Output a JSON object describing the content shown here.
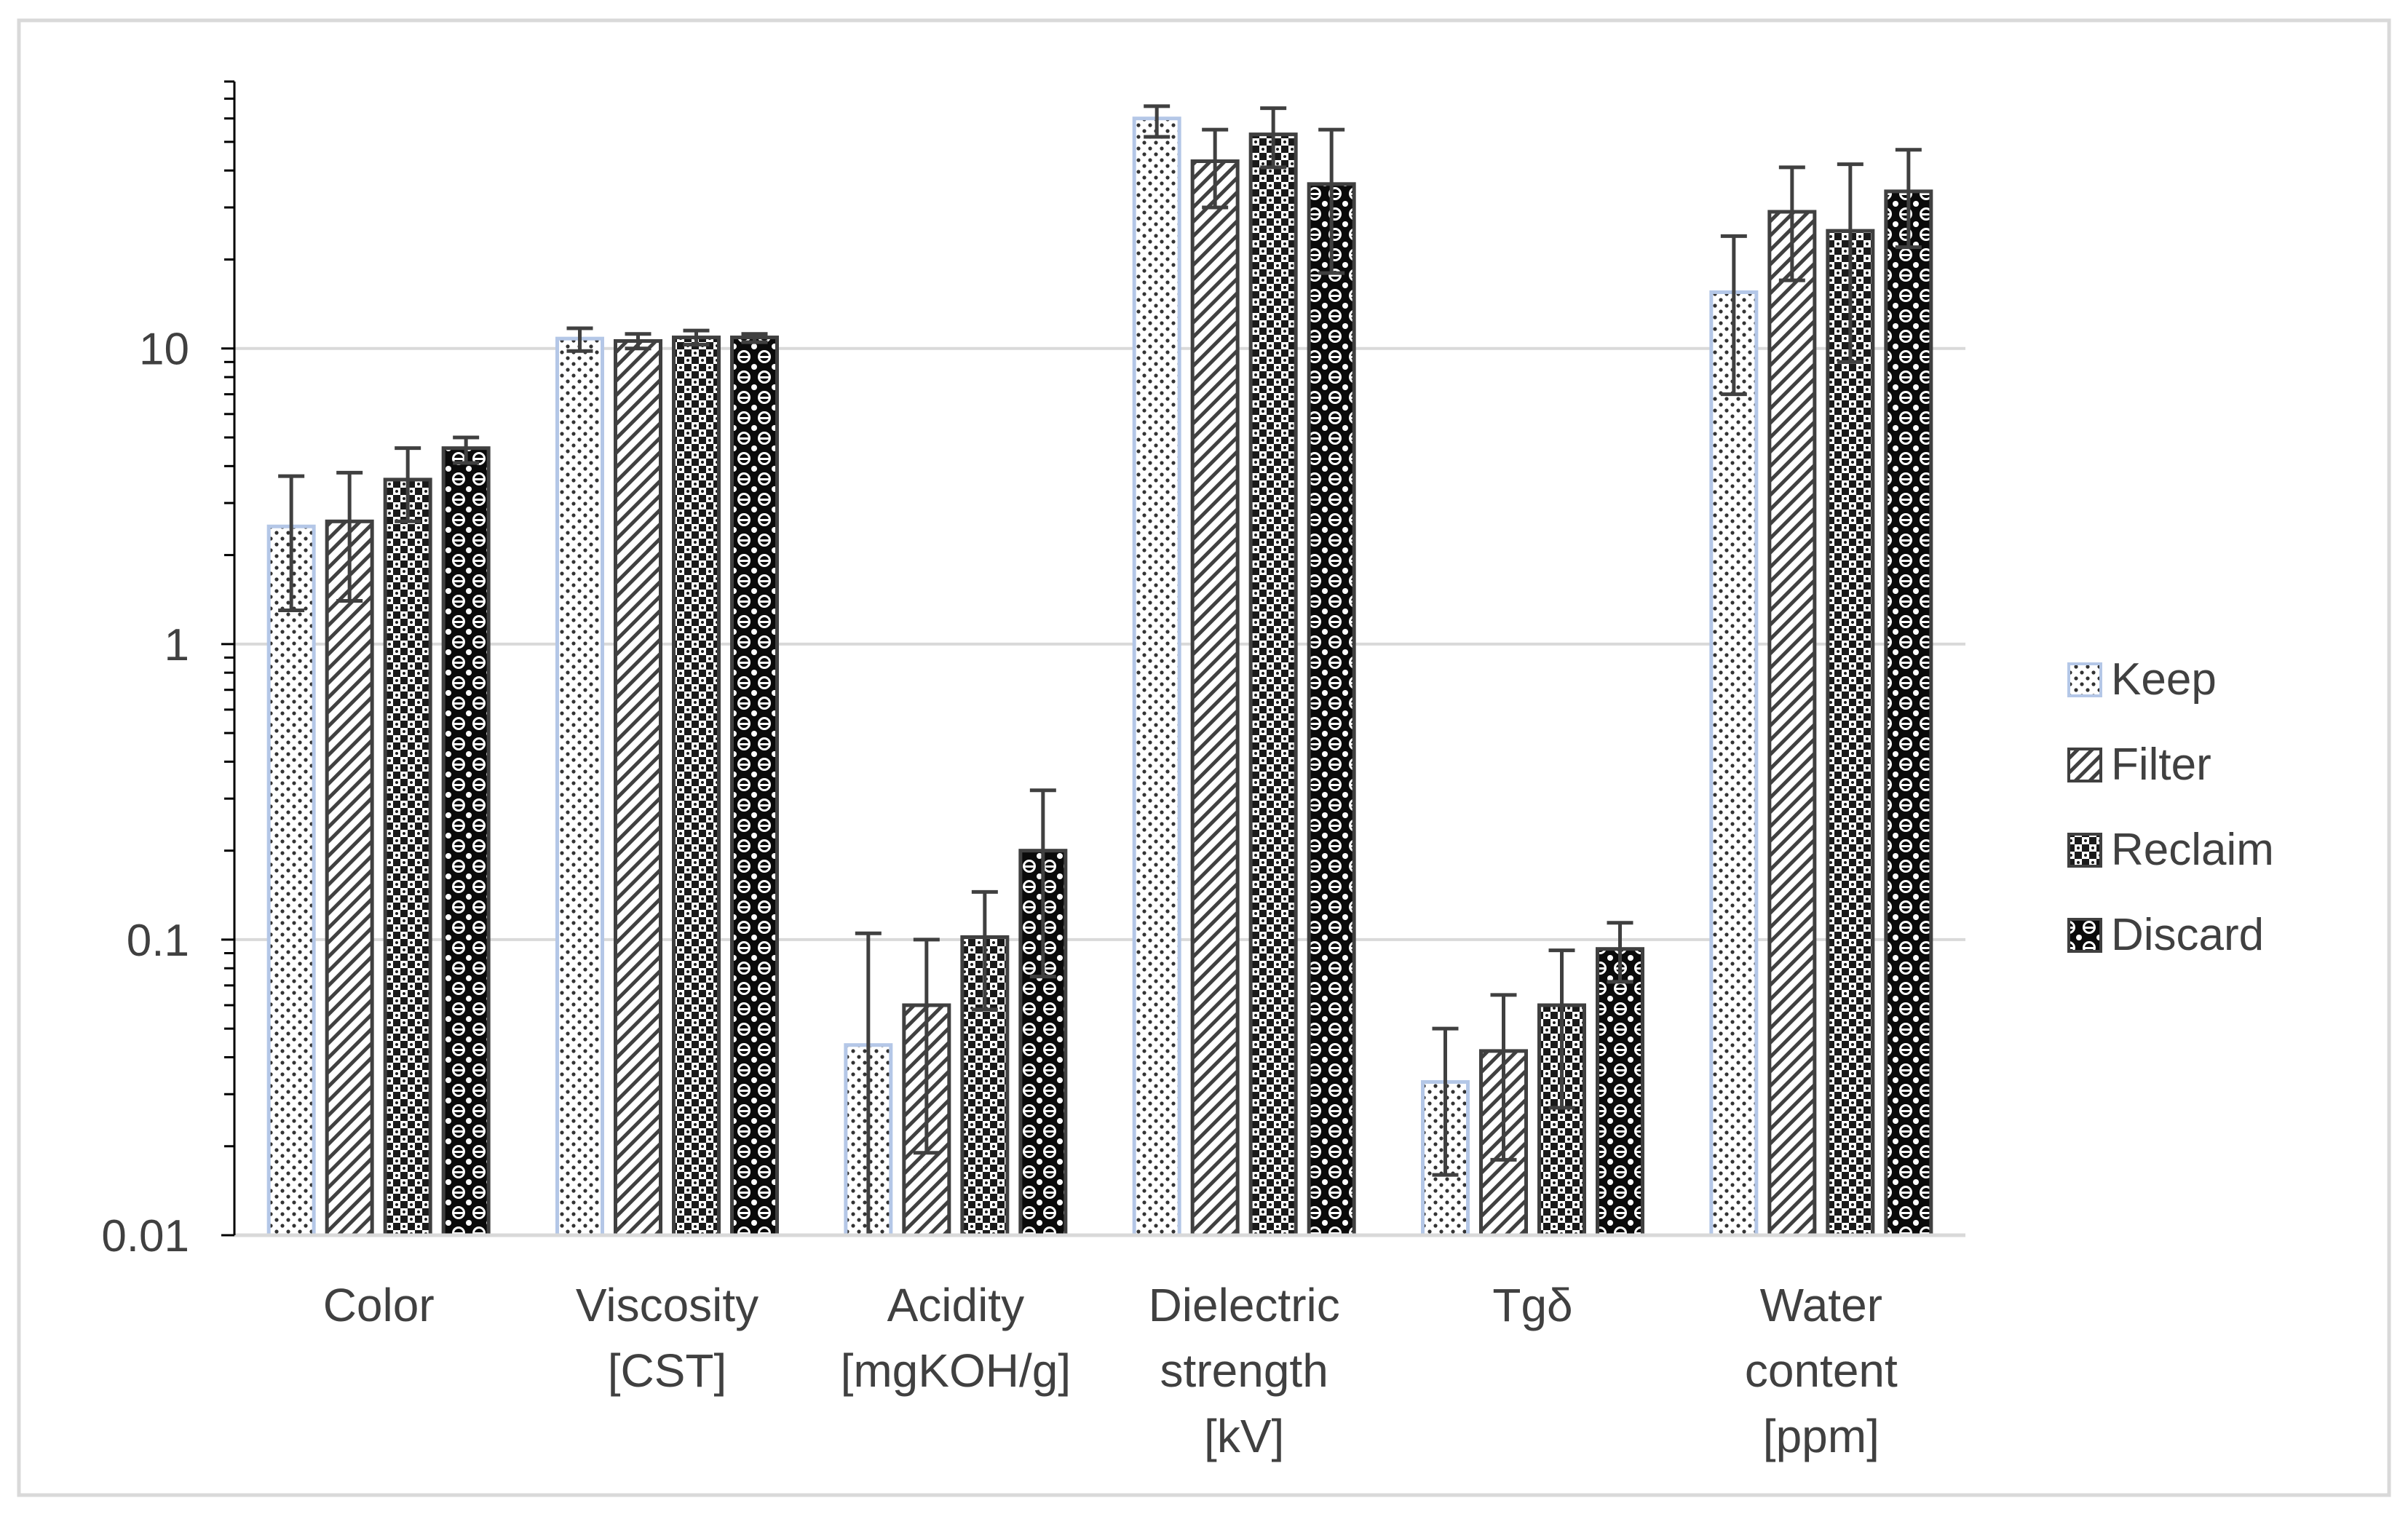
{
  "chart_data": {
    "type": "bar",
    "title": "",
    "xlabel": "",
    "ylabel": "",
    "yscale": "log",
    "ylim": [
      0.01,
      80
    ],
    "yticks": [
      {
        "value": 0.01,
        "label": "0.01"
      },
      {
        "value": 0.1,
        "label": "0.1"
      },
      {
        "value": 1,
        "label": "1"
      },
      {
        "value": 10,
        "label": "10"
      }
    ],
    "grid": true,
    "legend_position": "right",
    "categories": [
      {
        "lines": [
          "Color"
        ]
      },
      {
        "lines": [
          "Viscosity",
          "[CST]"
        ]
      },
      {
        "lines": [
          "Acidity",
          "[mgKOH/g]"
        ]
      },
      {
        "lines": [
          "Dielectric",
          "strength",
          "[kV]"
        ]
      },
      {
        "lines": [
          "Tgδ"
        ]
      },
      {
        "lines": [
          "Water",
          "content",
          "[ppm]"
        ]
      }
    ],
    "series": [
      {
        "name": "Keep",
        "pattern": "dots",
        "values": [
          2.5,
          10.8,
          0.044,
          60,
          0.033,
          15.5
        ],
        "err_low": [
          1.3,
          9.8,
          0.01,
          52,
          0.016,
          7
        ],
        "err_high": [
          3.7,
          11.7,
          0.105,
          66,
          0.05,
          24
        ]
      },
      {
        "name": "Filter",
        "pattern": "diagonal",
        "values": [
          2.6,
          10.6,
          0.06,
          43,
          0.042,
          29
        ],
        "err_low": [
          1.4,
          10.0,
          0.019,
          30,
          0.018,
          17
        ],
        "err_high": [
          3.8,
          11.2,
          0.1,
          55,
          0.065,
          41
        ]
      },
      {
        "name": "Reclaim",
        "pattern": "checker",
        "values": [
          3.6,
          10.9,
          0.102,
          53,
          0.06,
          25
        ],
        "err_low": [
          2.6,
          10.3,
          0.058,
          41,
          0.027,
          9
        ],
        "err_high": [
          4.6,
          11.5,
          0.145,
          65,
          0.092,
          42
        ]
      },
      {
        "name": "Discard",
        "pattern": "spheres",
        "values": [
          4.6,
          10.9,
          0.2,
          36,
          0.093,
          34
        ],
        "err_low": [
          4.1,
          10.5,
          0.075,
          18,
          0.072,
          22
        ],
        "err_high": [
          5.0,
          11.2,
          0.32,
          55,
          0.114,
          47
        ]
      }
    ],
    "colors": {
      "grid": "#d9d9d9",
      "axis": "#000000",
      "bar_outline": "#404040",
      "keep_outline": "#b4c7e7",
      "error_bar": "#404040",
      "text": "#404040",
      "border": "#d9d9d9"
    }
  }
}
